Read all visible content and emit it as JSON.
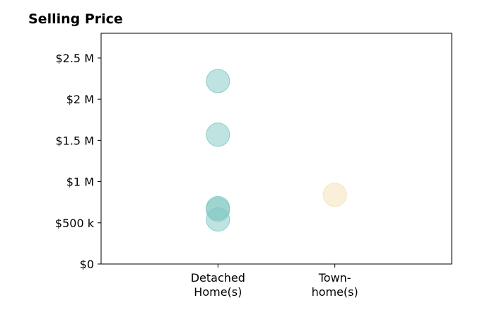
{
  "chart_data": {
    "type": "scatter",
    "title": "Selling Price",
    "xlabel": "",
    "ylabel": "",
    "categories": [
      {
        "lines": [
          "Detached",
          "Home(s)"
        ],
        "color": "#7fc8c1"
      },
      {
        "lines": [
          "Town-",
          "home(s)"
        ],
        "color": "#f6e0b3"
      }
    ],
    "points": [
      {
        "category": 0,
        "value": 2220000
      },
      {
        "category": 0,
        "value": 1570000
      },
      {
        "category": 0,
        "value": 680000
      },
      {
        "category": 0,
        "value": 660000
      },
      {
        "category": 0,
        "value": 540000
      },
      {
        "category": 1,
        "value": 840000
      }
    ],
    "yticks": [
      {
        "value": 0,
        "label": "$0"
      },
      {
        "value": 500000,
        "label": "$500 k"
      },
      {
        "value": 1000000,
        "label": "$1 M"
      },
      {
        "value": 1500000,
        "label": "$1.5 M"
      },
      {
        "value": 2000000,
        "label": "$2 M"
      },
      {
        "value": 2500000,
        "label": "$2.5 M"
      }
    ],
    "ylim": [
      0,
      2800000
    ],
    "xlim": [
      -1,
      2
    ],
    "grid": false,
    "marker_opacity": 0.5
  }
}
